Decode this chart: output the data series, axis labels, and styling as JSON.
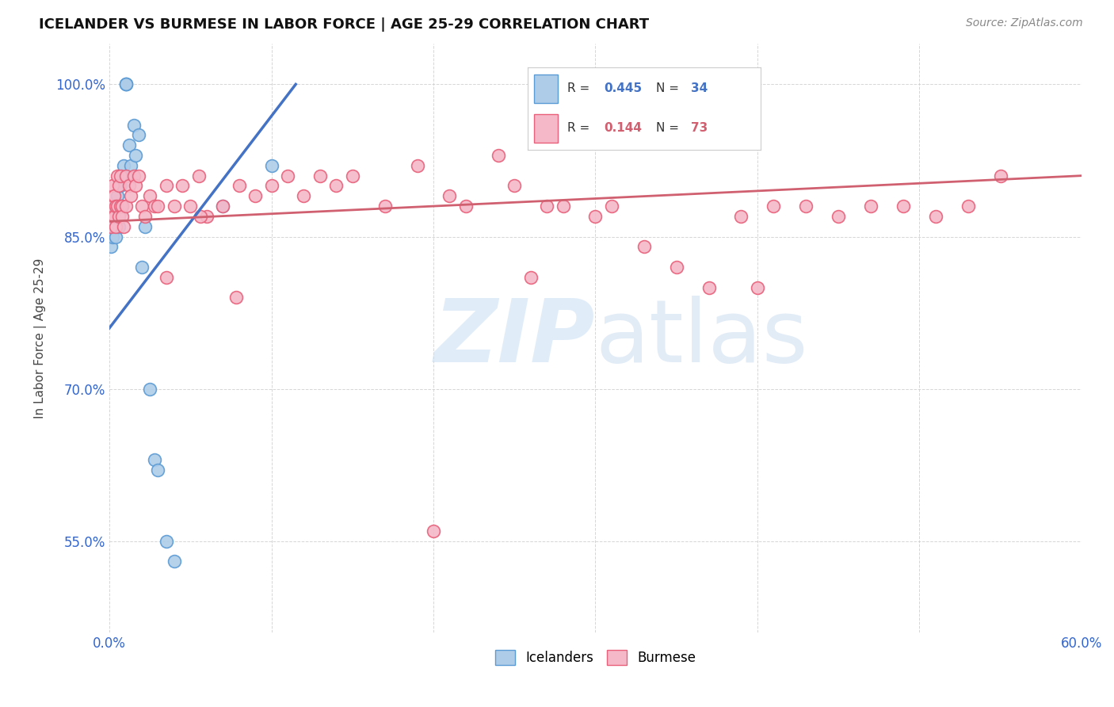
{
  "title": "ICELANDER VS BURMESE IN LABOR FORCE | AGE 25-29 CORRELATION CHART",
  "source": "Source: ZipAtlas.com",
  "ylabel": "In Labor Force | Age 25-29",
  "xlim": [
    0.0,
    0.6
  ],
  "ylim": [
    0.46,
    1.04
  ],
  "yticks": [
    0.55,
    0.7,
    0.85,
    1.0
  ],
  "ytick_labels": [
    "55.0%",
    "70.0%",
    "85.0%",
    "100.0%"
  ],
  "xticks": [
    0.0,
    0.1,
    0.2,
    0.3,
    0.4,
    0.5,
    0.6
  ],
  "xtick_labels": [
    "0.0%",
    "",
    "",
    "",
    "",
    "",
    "60.0%"
  ],
  "icelander_color": "#aecce8",
  "icelander_edge": "#5b9bd5",
  "burmese_color": "#f5b8c8",
  "burmese_edge": "#e8607a",
  "trendline_icelander": "#4472c4",
  "trendline_burmese": "#d06070",
  "R_icelander": 0.445,
  "N_icelander": 34,
  "R_burmese": 0.144,
  "N_burmese": 73,
  "icelander_x": [
    0.001,
    0.001,
    0.002,
    0.002,
    0.003,
    0.003,
    0.004,
    0.004,
    0.005,
    0.005,
    0.006,
    0.006,
    0.007,
    0.007,
    0.008,
    0.008,
    0.009,
    0.01,
    0.01,
    0.01,
    0.012,
    0.013,
    0.015,
    0.016,
    0.018,
    0.02,
    0.022,
    0.025,
    0.028,
    0.03,
    0.035,
    0.04,
    0.07,
    0.1
  ],
  "icelander_y": [
    0.86,
    0.84,
    0.87,
    0.85,
    0.88,
    0.86,
    0.875,
    0.85,
    0.89,
    0.87,
    0.88,
    0.86,
    0.9,
    0.875,
    0.91,
    0.88,
    0.92,
    1.0,
    1.0,
    1.0,
    0.94,
    0.92,
    0.96,
    0.93,
    0.95,
    0.82,
    0.86,
    0.7,
    0.63,
    0.62,
    0.55,
    0.53,
    0.88,
    0.92
  ],
  "burmese_x": [
    0.001,
    0.001,
    0.001,
    0.002,
    0.002,
    0.003,
    0.003,
    0.004,
    0.004,
    0.005,
    0.005,
    0.006,
    0.006,
    0.007,
    0.007,
    0.008,
    0.008,
    0.009,
    0.01,
    0.01,
    0.012,
    0.013,
    0.015,
    0.016,
    0.018,
    0.02,
    0.022,
    0.025,
    0.028,
    0.03,
    0.035,
    0.04,
    0.045,
    0.05,
    0.055,
    0.06,
    0.07,
    0.08,
    0.09,
    0.1,
    0.11,
    0.12,
    0.13,
    0.14,
    0.15,
    0.17,
    0.19,
    0.21,
    0.22,
    0.24,
    0.25,
    0.27,
    0.28,
    0.3,
    0.31,
    0.33,
    0.35,
    0.37,
    0.39,
    0.41,
    0.43,
    0.45,
    0.47,
    0.49,
    0.51,
    0.53,
    0.55,
    0.4,
    0.2,
    0.26,
    0.078,
    0.056,
    0.035
  ],
  "burmese_y": [
    0.88,
    0.87,
    0.86,
    0.9,
    0.88,
    0.89,
    0.87,
    0.88,
    0.86,
    0.91,
    0.88,
    0.9,
    0.87,
    0.91,
    0.88,
    0.88,
    0.87,
    0.86,
    0.91,
    0.88,
    0.9,
    0.89,
    0.91,
    0.9,
    0.91,
    0.88,
    0.87,
    0.89,
    0.88,
    0.88,
    0.9,
    0.88,
    0.9,
    0.88,
    0.91,
    0.87,
    0.88,
    0.9,
    0.89,
    0.9,
    0.91,
    0.89,
    0.91,
    0.9,
    0.91,
    0.88,
    0.92,
    0.89,
    0.88,
    0.93,
    0.9,
    0.88,
    0.88,
    0.87,
    0.88,
    0.84,
    0.82,
    0.8,
    0.87,
    0.88,
    0.88,
    0.87,
    0.88,
    0.88,
    0.87,
    0.88,
    0.91,
    0.8,
    0.56,
    0.81,
    0.79,
    0.87,
    0.81
  ]
}
